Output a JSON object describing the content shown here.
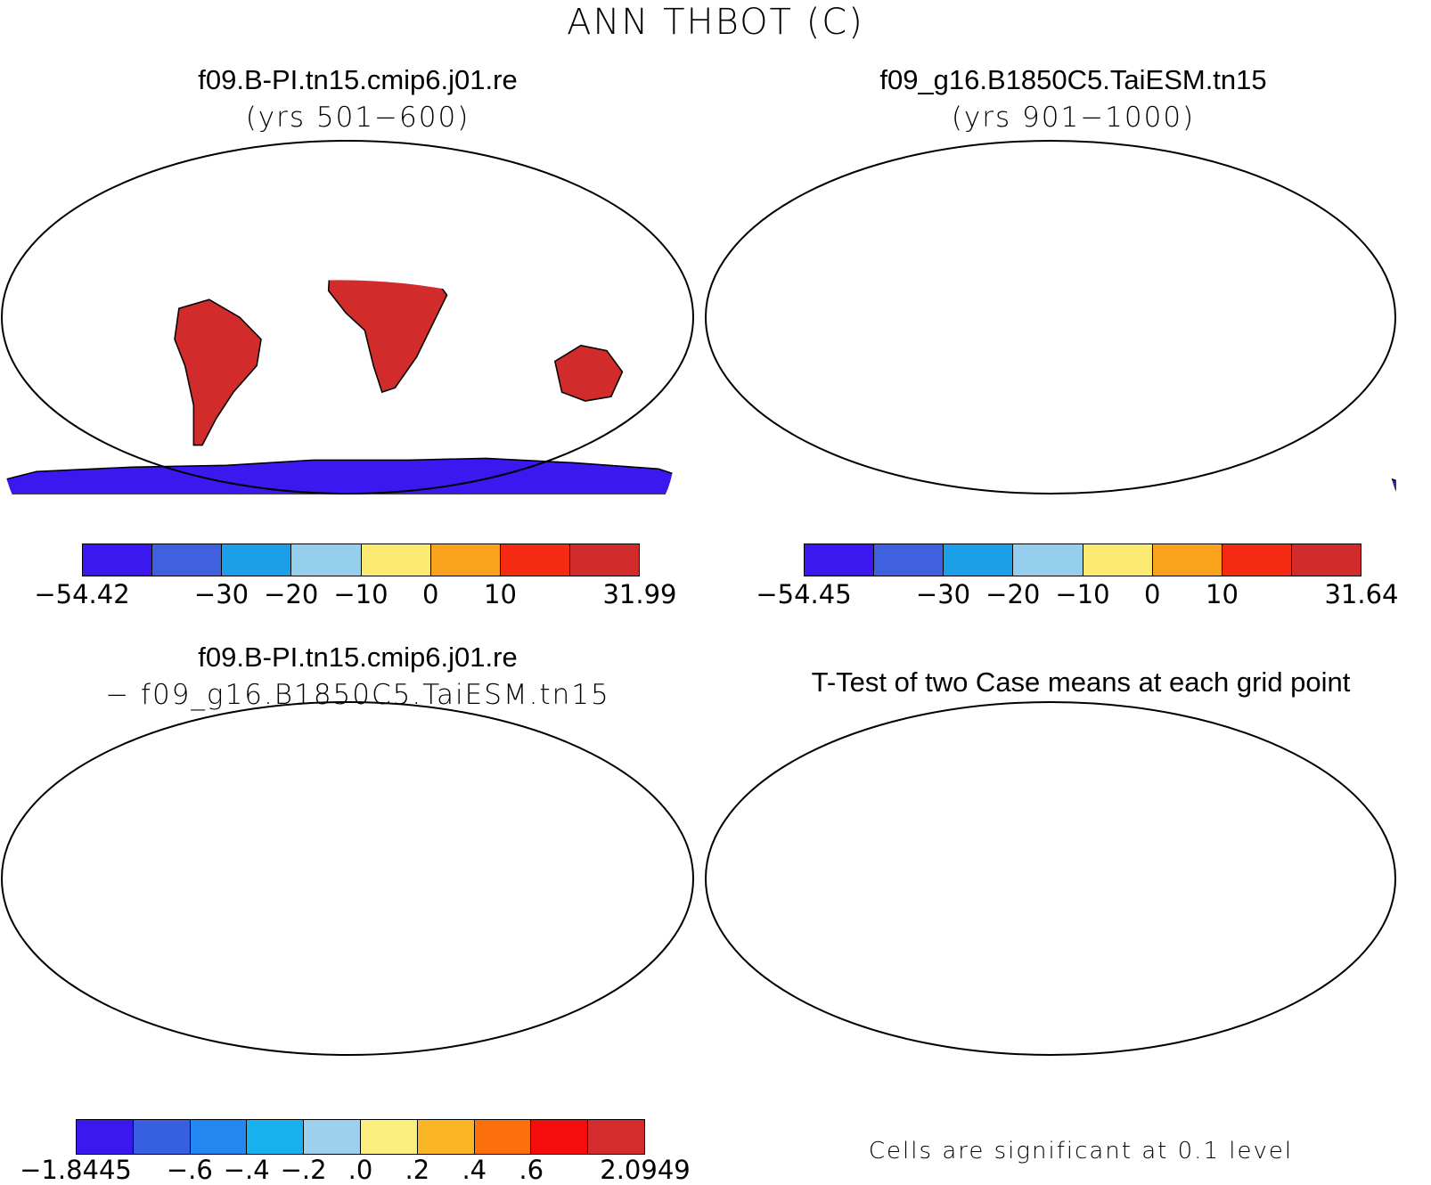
{
  "title": "ANN THBOT (C)",
  "panels": [
    {
      "id": "case1",
      "title": "f09.B-PI.tn15.cmip6.j01.re",
      "subtitle": "(yrs 501−600)",
      "colorbar": {
        "colors": [
          "#3b18f0",
          "#3f61e0",
          "#1a9fe8",
          "#96cfee",
          "#fbeb73",
          "#fba21c",
          "#f42b12",
          "#d12c2b"
        ],
        "labels": [
          "−54.42",
          "−30",
          "−20",
          "−10",
          "0",
          "10",
          "31.99"
        ],
        "label_bounds": [
          0,
          2,
          3,
          4,
          5,
          6,
          8
        ]
      }
    },
    {
      "id": "case2",
      "title": "f09_g16.B1850C5.TaiESM.tn15",
      "subtitle": "(yrs 901−1000)",
      "colorbar": {
        "colors": [
          "#3b18f0",
          "#3f61e0",
          "#1a9fe8",
          "#96cfee",
          "#fbeb73",
          "#fba21c",
          "#f42b12",
          "#d12c2b"
        ],
        "labels": [
          "−54.45",
          "−30",
          "−20",
          "−10",
          "0",
          "10",
          "31.64"
        ],
        "label_bounds": [
          0,
          2,
          3,
          4,
          5,
          6,
          8
        ]
      }
    },
    {
      "id": "diff",
      "title": "f09.B-PI.tn15.cmip6.j01.re",
      "subtitle": "− f09_g16.B1850C5.TaiESM.tn15",
      "colorbar": {
        "colors": [
          "#3b18f0",
          "#3760e0",
          "#2486f0",
          "#17b1f0",
          "#9dd1ee",
          "#fbef7f",
          "#fbb625",
          "#fb700c",
          "#f50d0d",
          "#d42c2c"
        ],
        "labels": [
          "−1.8445",
          "−.6",
          "−.4",
          "−.2",
          ".0",
          ".2",
          ".4",
          ".6",
          "2.0949"
        ],
        "label_bounds": [
          0,
          2,
          3,
          4,
          5,
          6,
          7,
          8,
          10
        ]
      }
    },
    {
      "id": "ttest",
      "title": "T-Test of two Case means at each grid point",
      "note": "Cells are significant at 0.1 level",
      "fill_color": "#ee1111"
    }
  ]
}
